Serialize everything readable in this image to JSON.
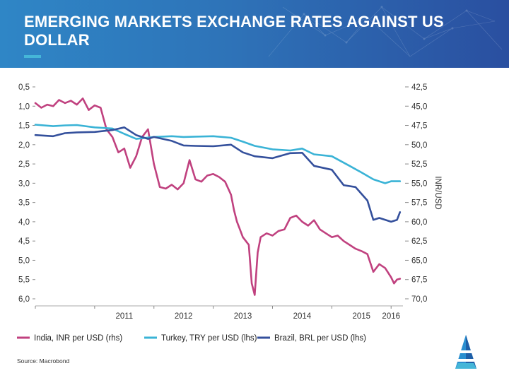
{
  "slide": {
    "title": "EMERGING MARKETS EXCHANGE RATES AGAINST US DOLLAR",
    "source": "Source: Macrobond"
  },
  "colors": {
    "header_left": "#2f86c6",
    "header_right": "#2a4fa0",
    "india": "#c0417f",
    "turkey": "#3ab3d6",
    "brazil": "#34509c",
    "accent": "#45b6d8"
  },
  "chart_data": {
    "type": "line",
    "title": "",
    "x_range": [
      2010.0,
      2016.2
    ],
    "x_ticks": [
      "2011",
      "2012",
      "2013",
      "2014",
      "2015",
      "2016"
    ],
    "left_axis": {
      "label": "",
      "inverted": true,
      "range": [
        0.5,
        6.0
      ],
      "ticks": [
        "0,5",
        "1,0",
        "1,5",
        "2,0",
        "2,5",
        "3,0",
        "3,5",
        "4,0",
        "4,5",
        "5,0",
        "5,5",
        "6,0"
      ]
    },
    "right_axis": {
      "label": "INR/USD",
      "inverted": true,
      "range": [
        42.5,
        70.0
      ],
      "ticks": [
        "42,5",
        "45,0",
        "47,5",
        "50,0",
        "52,5",
        "55,0",
        "57,5",
        "60,0",
        "62,5",
        "65,0",
        "67,5",
        "70,0"
      ]
    },
    "legend": {
      "placement": "bottom",
      "entries": [
        "India, INR per USD (rhs)",
        "Turkey, TRY per USD (lhs)",
        "Brazil, BRL per USD (lhs)"
      ]
    },
    "series": [
      {
        "name": "India, INR per USD (rhs)",
        "axis": "right",
        "color": "#c0417f",
        "x": [
          2010.0,
          2010.1,
          2010.2,
          2010.3,
          2010.4,
          2010.5,
          2010.6,
          2010.7,
          2010.8,
          2010.9,
          2011.0,
          2011.1,
          2011.2,
          2011.3,
          2011.4,
          2011.5,
          2011.6,
          2011.7,
          2011.8,
          2011.9,
          2012.0,
          2012.1,
          2012.2,
          2012.3,
          2012.4,
          2012.5,
          2012.6,
          2012.7,
          2012.8,
          2012.9,
          2013.0,
          2013.1,
          2013.2,
          2013.3,
          2013.35,
          2013.4,
          2013.45,
          2013.5,
          2013.6,
          2013.65,
          2013.7,
          2013.75,
          2013.8,
          2013.9,
          2014.0,
          2014.1,
          2014.2,
          2014.3,
          2014.4,
          2014.5,
          2014.6,
          2014.7,
          2014.8,
          2014.9,
          2015.0,
          2015.1,
          2015.2,
          2015.3,
          2015.4,
          2015.5,
          2015.6,
          2015.7,
          2015.8,
          2015.9,
          2016.0,
          2016.05,
          2016.1,
          2016.15
        ],
        "values": [
          44.6,
          45.2,
          44.8,
          45.0,
          44.2,
          44.6,
          44.3,
          44.8,
          44.0,
          45.5,
          44.9,
          45.2,
          48.0,
          49.0,
          51.0,
          50.5,
          53.0,
          51.5,
          49.0,
          48.0,
          52.5,
          55.5,
          55.7,
          55.2,
          55.8,
          55.0,
          52.0,
          54.5,
          54.8,
          54.0,
          53.8,
          54.2,
          54.8,
          56.5,
          58.5,
          60.0,
          61.0,
          62.0,
          63.0,
          68.0,
          69.5,
          64.0,
          62.0,
          61.5,
          61.8,
          61.2,
          61.0,
          59.5,
          59.2,
          60.0,
          60.5,
          59.8,
          61.0,
          61.5,
          62.0,
          61.8,
          62.5,
          63.0,
          63.5,
          63.8,
          64.2,
          66.5,
          65.5,
          66.0,
          67.2,
          68.0,
          67.5,
          67.4
        ]
      },
      {
        "name": "Turkey, TRY per USD (lhs)",
        "axis": "left",
        "color": "#3ab3d6",
        "x": [
          2010.0,
          2010.3,
          2010.5,
          2010.7,
          2011.0,
          2011.3,
          2011.5,
          2011.7,
          2012.0,
          2012.3,
          2012.5,
          2012.7,
          2013.0,
          2013.3,
          2013.5,
          2013.7,
          2014.0,
          2014.3,
          2014.5,
          2014.7,
          2015.0,
          2015.3,
          2015.5,
          2015.7,
          2015.9,
          2016.0,
          2016.15
        ],
        "values": [
          1.48,
          1.52,
          1.5,
          1.49,
          1.55,
          1.58,
          1.72,
          1.85,
          1.8,
          1.78,
          1.8,
          1.79,
          1.78,
          1.82,
          1.92,
          2.03,
          2.12,
          2.15,
          2.1,
          2.25,
          2.3,
          2.55,
          2.72,
          2.9,
          3.0,
          2.95,
          2.95
        ]
      },
      {
        "name": "Brazil, BRL per USD (lhs)",
        "axis": "left",
        "color": "#34509c",
        "x": [
          2010.0,
          2010.3,
          2010.5,
          2010.7,
          2011.0,
          2011.3,
          2011.5,
          2011.7,
          2011.9,
          2012.0,
          2012.3,
          2012.5,
          2012.7,
          2013.0,
          2013.3,
          2013.5,
          2013.7,
          2014.0,
          2014.3,
          2014.5,
          2014.7,
          2015.0,
          2015.2,
          2015.4,
          2015.6,
          2015.7,
          2015.8,
          2016.0,
          2016.1,
          2016.15
        ],
        "values": [
          1.75,
          1.78,
          1.7,
          1.68,
          1.67,
          1.62,
          1.55,
          1.75,
          1.85,
          1.8,
          1.9,
          2.02,
          2.03,
          2.04,
          2.0,
          2.2,
          2.3,
          2.35,
          2.22,
          2.21,
          2.55,
          2.65,
          3.05,
          3.1,
          3.45,
          3.95,
          3.9,
          4.0,
          3.95,
          3.75
        ]
      }
    ]
  }
}
